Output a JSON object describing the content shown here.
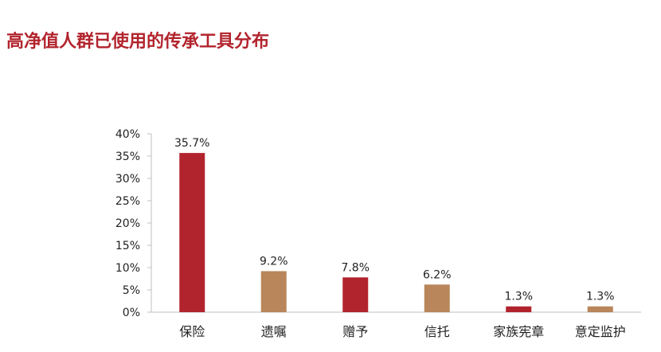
{
  "title": "高净值人群已使用的传承工具分布",
  "chart_data": {
    "type": "bar",
    "title": "高净值人群已使用的传承工具分布",
    "xlabel": "",
    "ylabel": "",
    "categories": [
      "保险",
      "遗嘱",
      "赠予",
      "信托",
      "家族宪章",
      "意定监护"
    ],
    "values": [
      35.7,
      9.2,
      7.8,
      6.2,
      1.3,
      1.3
    ],
    "data_labels": [
      "35.7%",
      "9.2%",
      "7.8%",
      "6.2%",
      "1.3%",
      "1.3%"
    ],
    "bar_colors": [
      "#b2242d",
      "#b8865a",
      "#b2242d",
      "#b8865a",
      "#b2242d",
      "#b8865a"
    ],
    "ylim": [
      0,
      40
    ],
    "yticks": [
      0,
      5,
      10,
      15,
      20,
      25,
      30,
      35,
      40
    ],
    "ytick_labels": [
      "0%",
      "5%",
      "10%",
      "15%",
      "20%",
      "25%",
      "30%",
      "35%",
      "40%"
    ],
    "grid": false,
    "legend": "none"
  },
  "colors": {
    "title": "#b2242d",
    "axis": "#bfbfbf",
    "text": "#222222"
  }
}
